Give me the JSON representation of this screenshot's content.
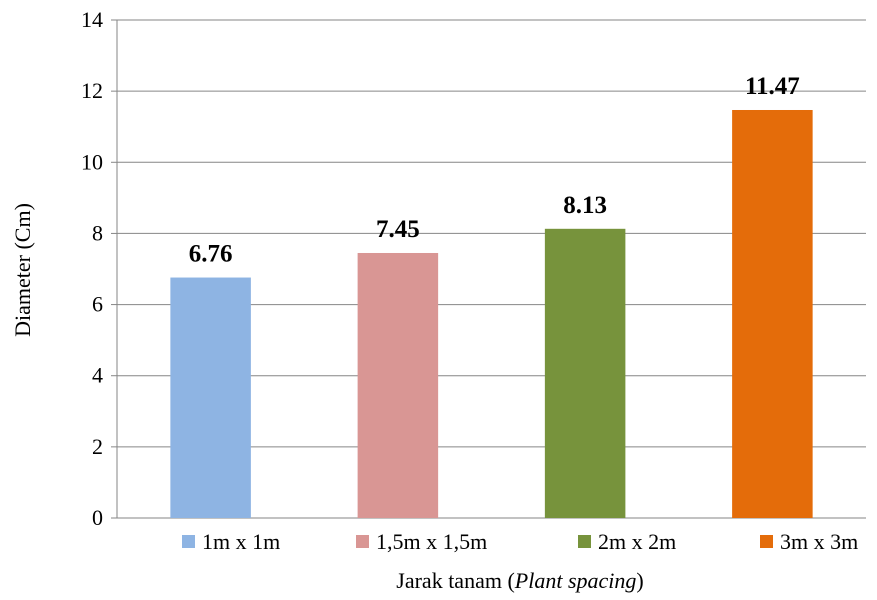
{
  "chart_data": {
    "type": "bar",
    "categories": [
      "1m x 1m",
      "1,5m x 1,5m",
      "2m x 2m",
      "3m x 3m"
    ],
    "values": [
      6.76,
      7.45,
      8.13,
      11.47
    ],
    "data_labels": [
      "6.76",
      "7.45",
      "8.13",
      "11.47"
    ],
    "colors": [
      "#8eb4e3",
      "#d99694",
      "#77933c",
      "#e46c0a"
    ],
    "title": "",
    "xlabel": "Jarak tanam (Plant spacing)",
    "xlabel_plain": "Jarak tanam (",
    "xlabel_italic": "Plant spacing",
    "xlabel_close": ")",
    "ylabel": "Diameter (Cm)",
    "ylim": [
      0,
      14
    ],
    "yticks": [
      0,
      2,
      4,
      6,
      8,
      10,
      12,
      14
    ],
    "grid": true,
    "legend": "bottom"
  }
}
